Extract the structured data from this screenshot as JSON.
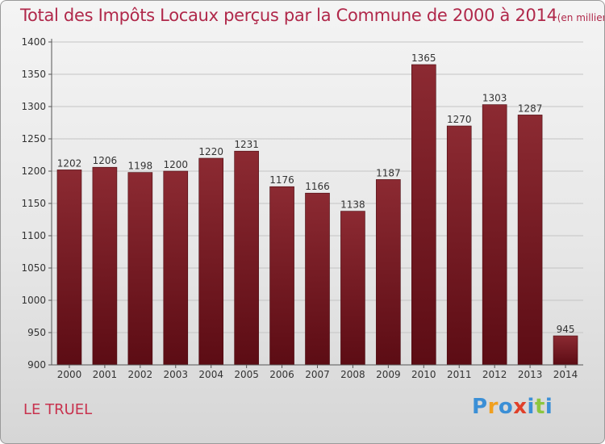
{
  "chart_data": {
    "type": "bar",
    "title": "Total des Impôts Locaux perçus par la Commune de 2000 à 2014",
    "subtitle": "(en milliers d'€)",
    "categories": [
      "2000",
      "2001",
      "2002",
      "2003",
      "2004",
      "2005",
      "2006",
      "2007",
      "2008",
      "2009",
      "2010",
      "2011",
      "2012",
      "2013",
      "2014"
    ],
    "values": [
      1202,
      1206,
      1198,
      1200,
      1220,
      1231,
      1176,
      1166,
      1138,
      1187,
      1365,
      1270,
      1303,
      1287,
      945
    ],
    "ylim": [
      900,
      1400
    ],
    "yticks": [
      900,
      950,
      1000,
      1050,
      1100,
      1150,
      1200,
      1250,
      1300,
      1350,
      1400
    ],
    "grid": true,
    "bar_color": "#7a1a22",
    "xlabel": "",
    "ylabel": ""
  },
  "footer": {
    "commune": "LE TRUEL",
    "brand_letters": [
      {
        "ch": "P",
        "color": "#3b8fd6"
      },
      {
        "ch": "r",
        "color": "#f0a020"
      },
      {
        "ch": "o",
        "color": "#3b8fd6"
      },
      {
        "ch": "x",
        "color": "#e0402a"
      },
      {
        "ch": "i",
        "color": "#3b8fd6"
      },
      {
        "ch": "t",
        "color": "#8cc63f"
      },
      {
        "ch": "i",
        "color": "#3b8fd6"
      }
    ]
  }
}
